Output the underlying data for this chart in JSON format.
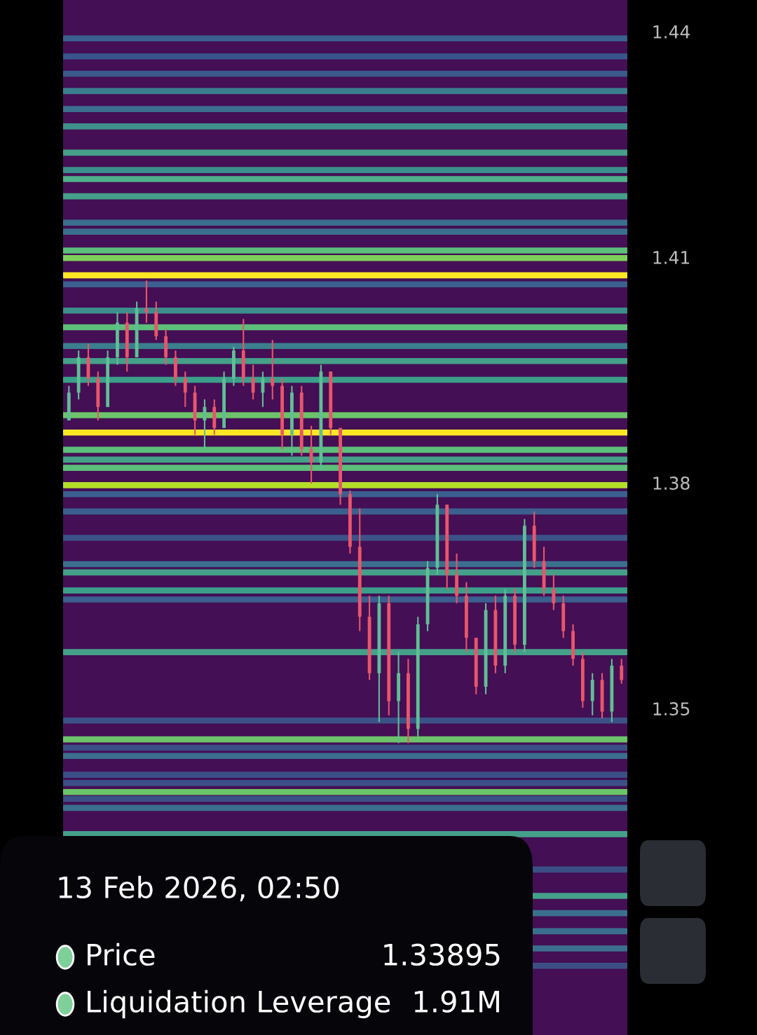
{
  "chart_data": {
    "type": "candlestick",
    "categories": [
      null,
      null,
      null,
      null,
      null,
      null,
      null,
      null,
      null,
      null,
      null,
      null,
      null,
      null,
      null,
      null,
      null,
      null,
      null,
      null,
      null,
      null,
      null,
      null,
      null,
      null,
      null,
      null,
      null,
      null,
      null,
      null,
      null,
      null,
      null,
      null,
      null,
      null,
      null,
      null,
      null,
      null,
      null,
      null,
      null,
      null,
      null,
      null,
      null,
      null,
      null,
      null,
      null,
      null,
      null,
      null,
      null,
      null
    ],
    "ohlc": [
      [
        1.3883,
        1.3929,
        1.3883,
        1.392
      ],
      [
        1.392,
        1.3976,
        1.3911,
        1.3967
      ],
      [
        1.3967,
        1.3985,
        1.3929,
        1.3939
      ],
      [
        1.3939,
        1.3948,
        1.3883,
        1.3901
      ],
      [
        1.3901,
        1.3976,
        1.3901,
        1.3967
      ],
      [
        1.3967,
        1.4027,
        1.3957,
        1.4013
      ],
      [
        1.4013,
        1.4027,
        1.3948,
        1.3967
      ],
      [
        1.3967,
        1.4041,
        1.3967,
        1.4032
      ],
      [
        1.4032,
        1.4069,
        1.4013,
        1.4027
      ],
      [
        1.4027,
        1.4041,
        1.399,
        1.3995
      ],
      [
        1.3995,
        1.4004,
        1.3957,
        1.3967
      ],
      [
        1.3967,
        1.3976,
        1.3929,
        1.3939
      ],
      [
        1.3939,
        1.3948,
        1.3901,
        1.392
      ],
      [
        1.392,
        1.3929,
        1.3864,
        1.3883
      ],
      [
        1.3883,
        1.3911,
        1.3845,
        1.3901
      ],
      [
        1.3901,
        1.3911,
        1.3864,
        1.3873
      ],
      [
        1.3873,
        1.3948,
        1.3873,
        1.3939
      ],
      [
        1.3939,
        1.3981,
        1.3929,
        1.3976
      ],
      [
        1.3976,
        1.4018,
        1.3929,
        1.3939
      ],
      [
        1.3939,
        1.3957,
        1.3911,
        1.392
      ],
      [
        1.392,
        1.3948,
        1.3901,
        1.3939
      ],
      [
        1.3939,
        1.399,
        1.3911,
        1.3929
      ],
      [
        1.3929,
        1.3939,
        1.3845,
        1.3864
      ],
      [
        1.3864,
        1.3929,
        1.3836,
        1.392
      ],
      [
        1.392,
        1.3929,
        1.3836,
        1.3845
      ],
      [
        1.3845,
        1.3876,
        1.3799,
        1.3827
      ],
      [
        1.3827,
        1.3957,
        1.3817,
        1.3948
      ],
      [
        1.3948,
        1.3948,
        1.3864,
        1.3873
      ],
      [
        1.3873,
        1.3873,
        1.3771,
        1.3785
      ],
      [
        1.3785,
        1.379,
        1.3706,
        1.3715
      ],
      [
        1.3715,
        1.3766,
        1.3603,
        1.3622
      ],
      [
        1.3622,
        1.365,
        1.3538,
        1.3547
      ],
      [
        1.3547,
        1.365,
        1.3482,
        1.364
      ],
      [
        1.364,
        1.365,
        1.3491,
        1.351
      ],
      [
        1.351,
        1.3575,
        1.3454,
        1.3547
      ],
      [
        1.3547,
        1.3566,
        1.3454,
        1.3473
      ],
      [
        1.3473,
        1.3622,
        1.3463,
        1.3612
      ],
      [
        1.3612,
        1.3696,
        1.3603,
        1.3687
      ],
      [
        1.3687,
        1.3785,
        1.3678,
        1.3771
      ],
      [
        1.3771,
        1.3771,
        1.3659,
        1.3678
      ],
      [
        1.3678,
        1.3706,
        1.364,
        1.365
      ],
      [
        1.365,
        1.3668,
        1.3575,
        1.3594
      ],
      [
        1.3594,
        1.3594,
        1.3519,
        1.3529
      ],
      [
        1.3529,
        1.364,
        1.3519,
        1.3631
      ],
      [
        1.3631,
        1.365,
        1.3547,
        1.3557
      ],
      [
        1.3557,
        1.3659,
        1.3547,
        1.365
      ],
      [
        1.365,
        1.3659,
        1.3575,
        1.3585
      ],
      [
        1.3585,
        1.3752,
        1.3575,
        1.3743
      ],
      [
        1.3743,
        1.3762,
        1.3687,
        1.3696
      ],
      [
        1.3696,
        1.3715,
        1.365,
        1.3659
      ],
      [
        1.3659,
        1.3678,
        1.3631,
        1.364
      ],
      [
        1.364,
        1.365,
        1.3594,
        1.3603
      ],
      [
        1.3603,
        1.3612,
        1.3557,
        1.3566
      ],
      [
        1.3566,
        1.3575,
        1.3501,
        1.351
      ],
      [
        1.351,
        1.3547,
        1.3491,
        1.3538
      ],
      [
        1.3538,
        1.3547,
        1.3487,
        1.3496
      ],
      [
        1.3496,
        1.3566,
        1.3482,
        1.3557
      ],
      [
        1.3557,
        1.3566,
        1.3533,
        1.3538
      ]
    ],
    "colors": [
      "#5fbf95",
      "#5fbf95",
      "#e8566b",
      "#e8566b",
      "#5fbf95",
      "#5fbf95",
      "#e8566b",
      "#5fbf95",
      "#e8566b",
      "#e8566b",
      "#e8566b",
      "#e8566b",
      "#e8566b",
      "#e8566b",
      "#5fbf95",
      "#e8566b",
      "#5fbf95",
      "#5fbf95",
      "#e8566b",
      "#e8566b",
      "#5fbf95",
      "#e8566b",
      "#e8566b",
      "#5fbf95",
      "#e8566b",
      "#e8566b",
      "#5fbf95",
      "#e8566b",
      "#e8566b",
      "#e8566b",
      "#e8566b",
      "#e8566b",
      "#5fbf95",
      "#e8566b",
      "#5fbf95",
      "#e8566b",
      "#5fbf95",
      "#5fbf95",
      "#5fbf95",
      "#e8566b",
      "#e8566b",
      "#e8566b",
      "#e8566b",
      "#5fbf95",
      "#e8566b",
      "#5fbf95",
      "#e8566b",
      "#5fbf95",
      "#e8566b",
      "#e8566b",
      "#e8566b",
      "#e8566b",
      "#e8566b",
      "#e8566b",
      "#5fbf95",
      "#e8566b",
      "#5fbf95",
      "#e8566b"
    ],
    "ylim": [
      1.3066,
      1.4442
    ],
    "yticks": [
      1.35,
      1.38,
      1.41,
      1.44
    ],
    "tick_labels": "y",
    "grid": false,
    "bands": [
      {
        "axis": "y",
        "from": 1.4387,
        "to": 1.4395,
        "color": "#3b5f8f"
      },
      {
        "axis": "y",
        "from": 1.4363,
        "to": 1.4371,
        "color": "#39568c"
      },
      {
        "axis": "y",
        "from": 1.434,
        "to": 1.4348,
        "color": "#3a5a8c"
      },
      {
        "axis": "y",
        "from": 1.4317,
        "to": 1.4325,
        "color": "#3b7f8e"
      },
      {
        "axis": "y",
        "from": 1.4293,
        "to": 1.4301,
        "color": "#3c6f8e"
      },
      {
        "axis": "y",
        "from": 1.427,
        "to": 1.4278,
        "color": "#3f8f8a"
      },
      {
        "axis": "y",
        "from": 1.4235,
        "to": 1.4243,
        "color": "#45a08a"
      },
      {
        "axis": "y",
        "from": 1.4212,
        "to": 1.422,
        "color": "#3b8f8c"
      },
      {
        "axis": "y",
        "from": 1.42,
        "to": 1.4208,
        "color": "#4fb08a"
      },
      {
        "axis": "y",
        "from": 1.4177,
        "to": 1.4185,
        "color": "#45a08a"
      },
      {
        "axis": "y",
        "from": 1.4142,
        "to": 1.415,
        "color": "#3b6f8e"
      },
      {
        "axis": "y",
        "from": 1.413,
        "to": 1.4138,
        "color": "#3b6f8e"
      },
      {
        "axis": "y",
        "from": 1.4105,
        "to": 1.4113,
        "color": "#5cbf7a"
      },
      {
        "axis": "y",
        "from": 1.4095,
        "to": 1.4103,
        "color": "#7ed05a"
      },
      {
        "axis": "y",
        "from": 1.4072,
        "to": 1.408,
        "color": "#fde725"
      },
      {
        "axis": "y",
        "from": 1.406,
        "to": 1.4068,
        "color": "#3b5f8f"
      },
      {
        "axis": "y",
        "from": 1.4025,
        "to": 1.4033,
        "color": "#3b8f8c"
      },
      {
        "axis": "y",
        "from": 1.4003,
        "to": 1.4011,
        "color": "#5cbf7a"
      },
      {
        "axis": "y",
        "from": 1.3978,
        "to": 1.3986,
        "color": "#3b7f8e"
      },
      {
        "axis": "y",
        "from": 1.3958,
        "to": 1.3966,
        "color": "#45a08a"
      },
      {
        "axis": "y",
        "from": 1.3933,
        "to": 1.3941,
        "color": "#3b9f8a"
      },
      {
        "axis": "y",
        "from": 1.3886,
        "to": 1.3894,
        "color": "#6cc46a"
      },
      {
        "axis": "y",
        "from": 1.3863,
        "to": 1.3871,
        "color": "#fde725"
      },
      {
        "axis": "y",
        "from": 1.384,
        "to": 1.3848,
        "color": "#5cbf7a"
      },
      {
        "axis": "y",
        "from": 1.3827,
        "to": 1.3835,
        "color": "#45a08a"
      },
      {
        "axis": "y",
        "from": 1.3816,
        "to": 1.3824,
        "color": "#5cbf7a"
      },
      {
        "axis": "y",
        "from": 1.3793,
        "to": 1.3801,
        "color": "#b5de2b"
      },
      {
        "axis": "y",
        "from": 1.3781,
        "to": 1.3789,
        "color": "#3b5f8f"
      },
      {
        "axis": "y",
        "from": 1.3758,
        "to": 1.3766,
        "color": "#3b5f8f"
      },
      {
        "axis": "y",
        "from": 1.3723,
        "to": 1.3731,
        "color": "#3b5288"
      },
      {
        "axis": "y",
        "from": 1.3688,
        "to": 1.3696,
        "color": "#3b6f8e"
      },
      {
        "axis": "y",
        "from": 1.3677,
        "to": 1.3685,
        "color": "#45a08a"
      },
      {
        "axis": "y",
        "from": 1.3653,
        "to": 1.3661,
        "color": "#3b9f8a"
      },
      {
        "axis": "y",
        "from": 1.3641,
        "to": 1.3649,
        "color": "#3b5f8f"
      },
      {
        "axis": "y",
        "from": 1.3571,
        "to": 1.3579,
        "color": "#45a08a"
      },
      {
        "axis": "y",
        "from": 1.348,
        "to": 1.3488,
        "color": "#3b5288"
      },
      {
        "axis": "y",
        "from": 1.3455,
        "to": 1.3463,
        "color": "#6cc46a"
      },
      {
        "axis": "y",
        "from": 1.3444,
        "to": 1.3452,
        "color": "#3b4f86"
      },
      {
        "axis": "y",
        "from": 1.3433,
        "to": 1.3441,
        "color": "#3b6f8e"
      },
      {
        "axis": "y",
        "from": 1.3408,
        "to": 1.3416,
        "color": "#3b4f86"
      },
      {
        "axis": "y",
        "from": 1.3397,
        "to": 1.3405,
        "color": "#3b4f86"
      },
      {
        "axis": "y",
        "from": 1.3385,
        "to": 1.3393,
        "color": "#6cc46a"
      },
      {
        "axis": "y",
        "from": 1.3376,
        "to": 1.3384,
        "color": "#3b4f86"
      },
      {
        "axis": "y",
        "from": 1.3364,
        "to": 1.3372,
        "color": "#3b6f8e"
      },
      {
        "axis": "y",
        "from": 1.3329,
        "to": 1.3337,
        "color": "#45a08a"
      },
      {
        "axis": "y",
        "from": 1.3282,
        "to": 1.329,
        "color": "#3b4f86"
      },
      {
        "axis": "y",
        "from": 1.3247,
        "to": 1.3255,
        "color": "#45a08a"
      },
      {
        "axis": "y",
        "from": 1.3224,
        "to": 1.3232,
        "color": "#3b6f8e"
      },
      {
        "axis": "y",
        "from": 1.32,
        "to": 1.3208,
        "color": "#3b6f8e"
      },
      {
        "axis": "y",
        "from": 1.3177,
        "to": 1.3185,
        "color": "#3b6f8e"
      },
      {
        "axis": "y",
        "from": 1.3154,
        "to": 1.3162,
        "color": "#3b4f86"
      }
    ],
    "annotations": [
      "13 Feb 2026, 02:50",
      "Price",
      "1.33895",
      "Liquidation Leverage",
      "1.91M"
    ]
  }
}
